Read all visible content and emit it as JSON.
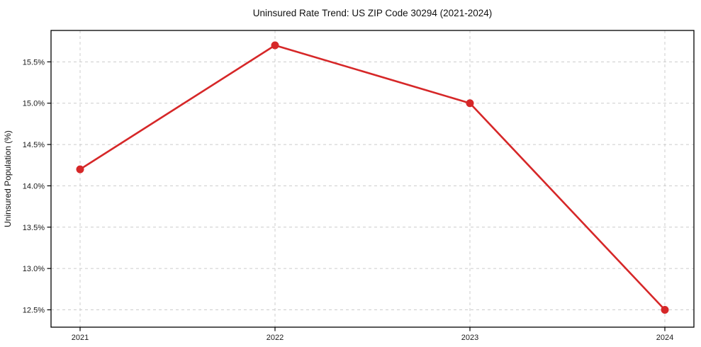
{
  "chart_data": {
    "type": "line",
    "title": "Uninsured Rate Trend: US ZIP Code 30294 (2021-2024)",
    "xlabel": "",
    "ylabel": "Uninsured Population (%)",
    "categories": [
      "2021",
      "2022",
      "2023",
      "2024"
    ],
    "series": [
      {
        "name": "Uninsured Population (%)",
        "values": [
          14.2,
          15.7,
          15.0,
          12.5
        ],
        "color": "#d62728"
      }
    ],
    "yticks": [
      12.5,
      13.0,
      13.5,
      14.0,
      14.5,
      15.0,
      15.5
    ],
    "ytick_labels": [
      "12.5%",
      "13.0%",
      "13.5%",
      "14.0%",
      "14.5%",
      "15.0%",
      "15.5%"
    ],
    "ylim": [
      12.29,
      15.88
    ],
    "grid": true,
    "grid_style": "dashed",
    "legend_position": "none",
    "colors": {
      "line": "#d62728",
      "marker": "#d62728",
      "grid": "#cccccc",
      "spine": "#000000",
      "text": "#1a1a1a",
      "background": "#ffffff"
    }
  }
}
